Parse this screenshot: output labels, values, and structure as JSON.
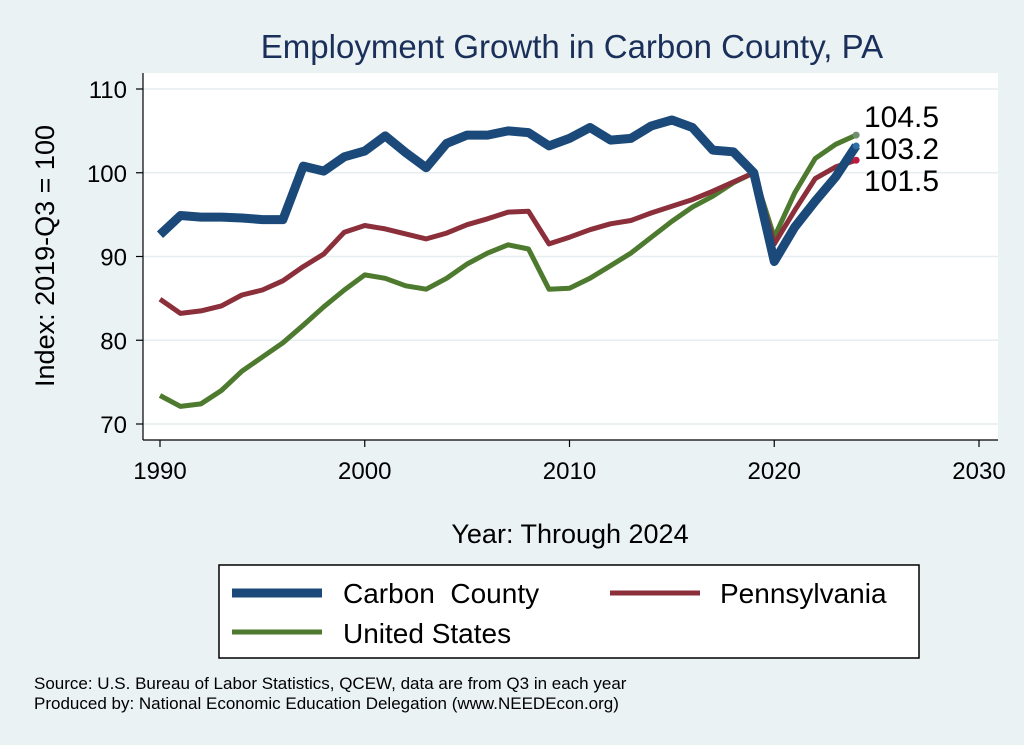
{
  "chart_data": {
    "type": "line",
    "title": "Employment Growth in Carbon County, PA",
    "xlabel": "Year: Through 2024",
    "ylabel": "Index: 2019-Q3 = 100",
    "xlim": [
      1990,
      2030
    ],
    "ylim": [
      70,
      110
    ],
    "xticks": [
      1990,
      2000,
      2010,
      2020,
      2030
    ],
    "yticks": [
      70,
      80,
      90,
      100,
      110
    ],
    "grid": true,
    "legend_position": "bottom",
    "x": [
      1990,
      1991,
      1992,
      1993,
      1994,
      1995,
      1996,
      1997,
      1998,
      1999,
      2000,
      2001,
      2002,
      2003,
      2004,
      2005,
      2006,
      2007,
      2008,
      2009,
      2010,
      2011,
      2012,
      2013,
      2014,
      2015,
      2016,
      2017,
      2018,
      2019,
      2020,
      2021,
      2022,
      2023,
      2024
    ],
    "series": [
      {
        "name": "Carbon  County",
        "color": "#1b4a7a",
        "end_label": "103.2",
        "values": [
          92.6,
          94.9,
          94.7,
          94.7,
          94.6,
          94.4,
          94.4,
          100.8,
          100.2,
          101.9,
          102.6,
          104.4,
          102.4,
          100.6,
          103.5,
          104.5,
          104.5,
          105.0,
          104.8,
          103.2,
          104.1,
          105.4,
          103.9,
          104.1,
          105.6,
          106.3,
          105.4,
          102.7,
          102.5,
          100.0,
          89.4,
          93.5,
          96.6,
          99.5,
          103.2
        ]
      },
      {
        "name": "Pennsylvania",
        "color": "#8b2f3b",
        "end_label": "101.5",
        "values": [
          84.9,
          83.2,
          83.5,
          84.1,
          85.4,
          86.0,
          87.1,
          88.8,
          90.3,
          92.9,
          93.7,
          93.3,
          92.7,
          92.1,
          92.8,
          93.8,
          94.5,
          95.3,
          95.4,
          91.5,
          92.3,
          93.2,
          93.9,
          94.3,
          95.2,
          96.0,
          96.8,
          97.8,
          98.9,
          100.0,
          91.5,
          95.5,
          99.3,
          100.7,
          101.5
        ]
      },
      {
        "name": "United States",
        "color": "#4d7a2e",
        "end_label": "104.5",
        "values": [
          73.4,
          72.1,
          72.4,
          74.0,
          76.3,
          78.0,
          79.7,
          81.8,
          84.0,
          86.0,
          87.8,
          87.4,
          86.5,
          86.1,
          87.4,
          89.1,
          90.4,
          91.4,
          90.9,
          86.1,
          86.2,
          87.4,
          88.9,
          90.4,
          92.3,
          94.2,
          95.9,
          97.2,
          98.8,
          100.0,
          92.3,
          97.6,
          101.7,
          103.4,
          104.5
        ]
      }
    ]
  },
  "notes": {
    "source": "Source: U.S. Bureau of Labor Statistics, QCEW, data are from Q3 in each year",
    "produced": "Produced by: National Economic Education Delegation (www.NEEDEcon.org)"
  }
}
